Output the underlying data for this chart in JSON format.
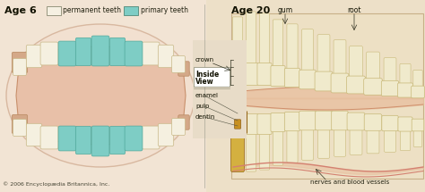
{
  "left_title": "Age 6",
  "right_title": "Age 20",
  "legend_permanent": "permanent teeth",
  "legend_primary": "primary teeth",
  "legend_permanent_color": "#f5f0e2",
  "legend_primary_color": "#7ecdc5",
  "middle_labels": [
    "crown",
    "Inside\nView",
    "enamel",
    "pulp",
    "dentin"
  ],
  "right_top_labels": [
    "gum",
    "root"
  ],
  "right_bottom_label": "nerves and blood vessels",
  "copyright": "© 2006 Encyclopædia Britannica, Inc.",
  "bg_color": "#e8dcc8",
  "left_panel_bg": "#f2e4d4",
  "right_panel_bg": "#ede0c8",
  "gum_color": "#e8c4b0",
  "gum_edge": "#d4a890",
  "perm_color": "#f5f0e0",
  "perm_edge": "#c8b888",
  "prim_color": "#7ecdc5",
  "prim_edge": "#50a89c",
  "right_tooth_color": "#f0eacc",
  "right_tooth_edge": "#c8b878",
  "wisdom_outer": "#d4b040",
  "wisdom_inner": "#e8c840",
  "wisdom_pulp": "#c89020",
  "nerve_color": "#d48070",
  "jaw_bg": "#ede0c8",
  "jaw_edge": "#c8b090"
}
